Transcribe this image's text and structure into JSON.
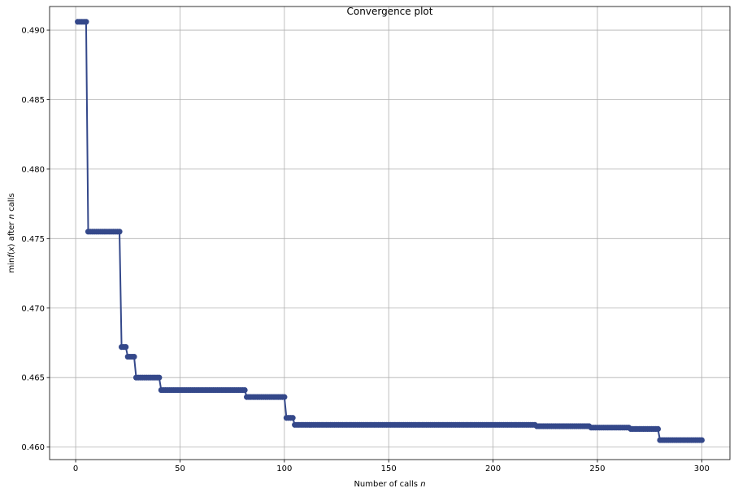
{
  "chart_data": {
    "type": "line",
    "title": "Convergence plot",
    "xlabel": "Number of calls",
    "xlabel_var": "n",
    "ylabel_prefix": "min",
    "ylabel_f": "f",
    "ylabel_x": "x",
    "ylabel_mid": "after",
    "ylabel_n": "n",
    "ylabel_suffix": "calls",
    "xlim": [
      -12.5,
      313.5
    ],
    "ylim": [
      0.4591,
      0.4917
    ],
    "xticks": [
      0,
      50,
      100,
      150,
      200,
      250,
      300
    ],
    "xtick_labels": [
      "0",
      "50",
      "100",
      "150",
      "200",
      "250",
      "300"
    ],
    "yticks": [
      0.46,
      0.465,
      0.47,
      0.475,
      0.48,
      0.485,
      0.49
    ],
    "ytick_labels": [
      "0.460",
      "0.465",
      "0.470",
      "0.475",
      "0.480",
      "0.485",
      "0.490"
    ],
    "grid": true,
    "color": "#34488a",
    "marker": "circle",
    "n_calls": 300,
    "steps": [
      {
        "from": 1,
        "value": 0.4906
      },
      {
        "from": 6,
        "value": 0.4755
      },
      {
        "from": 22,
        "value": 0.4672
      },
      {
        "from": 25,
        "value": 0.4665
      },
      {
        "from": 29,
        "value": 0.465
      },
      {
        "from": 41,
        "value": 0.4641
      },
      {
        "from": 82,
        "value": 0.4636
      },
      {
        "from": 101,
        "value": 0.4621
      },
      {
        "from": 105,
        "value": 0.4616
      },
      {
        "from": 221,
        "value": 0.4615
      },
      {
        "from": 247,
        "value": 0.4614
      },
      {
        "from": 266,
        "value": 0.4613
      },
      {
        "from": 280,
        "value": 0.4605
      }
    ]
  }
}
